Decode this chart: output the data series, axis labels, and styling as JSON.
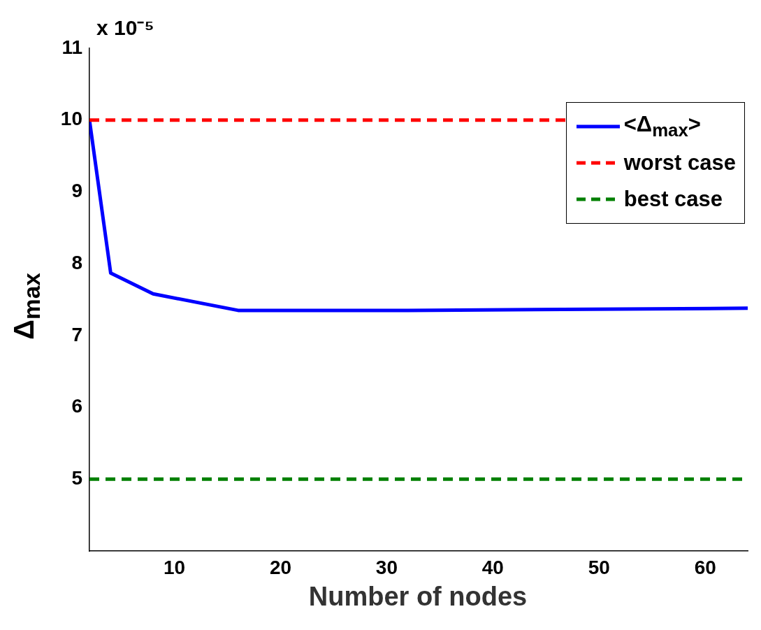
{
  "chart_data": {
    "type": "line",
    "xlabel": "Number of nodes",
    "ylabel": "Δ$_{max}$",
    "x": [
      2,
      4,
      8,
      16,
      32,
      64
    ],
    "series": [
      {
        "name": "<Δ$_{max}$>",
        "color": "#0000ff",
        "values": [
          10,
          7.87,
          7.58,
          7.35,
          7.35,
          7.38
        ]
      }
    ],
    "ref_lines": [
      {
        "axis": "y",
        "value": 10,
        "label": "worst case",
        "color": "#ff0000",
        "line_style": "dashed"
      },
      {
        "axis": "y",
        "value": 5,
        "label": "best case",
        "color": "#008000",
        "line_style": "dashed"
      }
    ],
    "xlim": [
      2,
      64
    ],
    "xticks": [
      10,
      20,
      30,
      40,
      50,
      60
    ],
    "ylim": [
      4,
      11
    ],
    "yticks": [
      5,
      6,
      7,
      8,
      9,
      10,
      11
    ],
    "annotations": [
      "x 10⁻⁵"
    ],
    "legend": "top right",
    "grid": false,
    "marker": "none",
    "line_style": "solid"
  }
}
